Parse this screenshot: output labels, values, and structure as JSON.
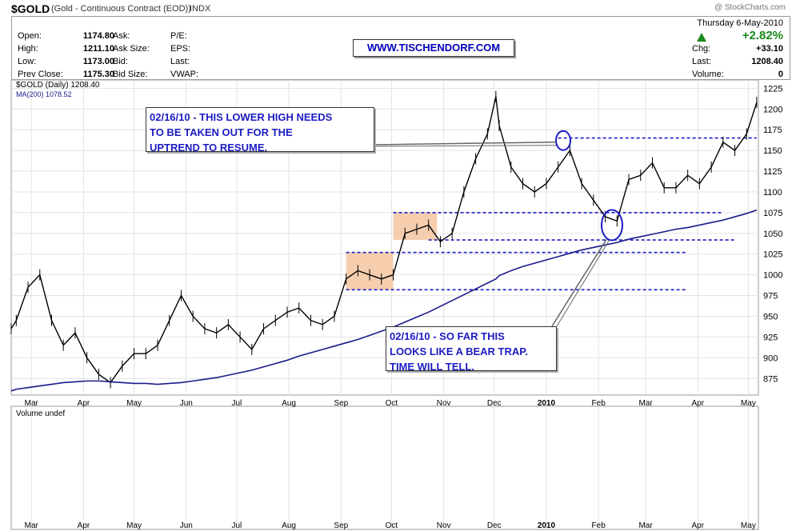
{
  "header": {
    "symbol": "$GOLD",
    "name": "(Gold - Continuous Contract (EOD))",
    "exchange": "INDX",
    "copyright": "@ StockCharts.com",
    "website": "WWW.TISCHENDORF.COM"
  },
  "quote": {
    "open_label": "Open:",
    "open": "1174.80",
    "high_label": "High:",
    "high": "1211.10",
    "low_label": "Low:",
    "low": "1173.00",
    "prev_label": "Prev Close:",
    "prev": "1175.30",
    "ask_label": "Ask:",
    "asksize_label": "Ask Size:",
    "bid_label": "Bid:",
    "bidsize_label": "Bid Size:",
    "pe_label": "P/E:",
    "eps_label": "EPS:",
    "last_label": "Last:",
    "vwap_label": "VWAP:"
  },
  "right_quote": {
    "date": "Thursday  6-May-2010",
    "pct": "+2.82%",
    "chg_label": "Chg:",
    "chg": "+33.10",
    "last_label": "Last:",
    "last": "1208.40",
    "volume_label": "Volume:",
    "volume": "0"
  },
  "legend": {
    "price": "$GOLD (Daily) 1208.40",
    "ma": "MA(200) 1078.52",
    "volume": "Volume undef"
  },
  "annotations": {
    "top": "02/16/10 - THIS LOWER HIGH NEEDS\nTO BE TAKEN OUT FOR THE\nUPTREND TO RESUME.",
    "bottom": "02/16/10 - SO FAR THIS\nLOOKS LIKE A BEAR TRAP.\nTIME WILL TELL."
  },
  "colors": {
    "price": "#000000",
    "ma": "#1a1a8c",
    "annotation": "#1c1cc4",
    "box": "#f5c6a0",
    "up": "#1a8a1a"
  },
  "chart_data": {
    "type": "line",
    "title": "$GOLD (Daily) 1208.40",
    "xlabel": "",
    "ylabel": "",
    "ylim": [
      855,
      1235
    ],
    "y_ticks": [
      875,
      900,
      925,
      950,
      975,
      1000,
      1025,
      1050,
      1075,
      1100,
      1125,
      1150,
      1175,
      1200,
      1225
    ],
    "x_ticks": [
      "Mar",
      "Apr",
      "May",
      "Jun",
      "Jul",
      "Aug",
      "Sep",
      "Oct",
      "Nov",
      "Dec",
      "2010",
      "Feb",
      "Mar",
      "Apr",
      "May"
    ],
    "x": [
      "2009-02-17",
      "2009-02-20",
      "2009-02-27",
      "2009-03-06",
      "2009-03-13",
      "2009-03-20",
      "2009-03-27",
      "2009-04-03",
      "2009-04-10",
      "2009-04-17",
      "2009-04-24",
      "2009-05-01",
      "2009-05-08",
      "2009-05-15",
      "2009-05-22",
      "2009-05-29",
      "2009-06-05",
      "2009-06-12",
      "2009-06-19",
      "2009-06-26",
      "2009-07-03",
      "2009-07-10",
      "2009-07-17",
      "2009-07-24",
      "2009-07-31",
      "2009-08-07",
      "2009-08-14",
      "2009-08-21",
      "2009-08-28",
      "2009-09-04",
      "2009-09-11",
      "2009-09-18",
      "2009-09-25",
      "2009-10-02",
      "2009-10-09",
      "2009-10-16",
      "2009-10-23",
      "2009-10-30",
      "2009-11-06",
      "2009-11-13",
      "2009-11-20",
      "2009-11-27",
      "2009-12-02",
      "2009-12-04",
      "2009-12-11",
      "2009-12-18",
      "2009-12-25",
      "2010-01-01",
      "2010-01-08",
      "2010-01-15",
      "2010-01-22",
      "2010-01-29",
      "2010-02-05",
      "2010-02-12",
      "2010-02-19",
      "2010-02-26",
      "2010-03-05",
      "2010-03-12",
      "2010-03-19",
      "2010-03-26",
      "2010-04-02",
      "2010-04-09",
      "2010-04-16",
      "2010-04-23",
      "2010-04-30",
      "2010-05-06"
    ],
    "series": [
      {
        "values": [
          935,
          945,
          985,
          1000,
          945,
          915,
          930,
          900,
          880,
          870,
          890,
          905,
          905,
          915,
          945,
          975,
          950,
          935,
          930,
          940,
          925,
          910,
          935,
          945,
          955,
          960,
          945,
          940,
          950,
          995,
          1005,
          1000,
          995,
          1000,
          1050,
          1055,
          1060,
          1040,
          1050,
          1100,
          1140,
          1170,
          1215,
          1180,
          1130,
          1110,
          1100,
          1110,
          1130,
          1150,
          1110,
          1090,
          1070,
          1065,
          1115,
          1120,
          1135,
          1105,
          1105,
          1120,
          1110,
          1130,
          1160,
          1150,
          1170,
          1208
        ]
      },
      {
        "name": "MA(200)",
        "values": [
          860,
          862,
          864,
          866,
          868,
          870,
          871,
          872,
          872,
          871,
          870,
          869,
          869,
          868,
          869,
          870,
          872,
          874,
          876,
          879,
          882,
          885,
          889,
          893,
          897,
          902,
          906,
          910,
          914,
          918,
          922,
          927,
          932,
          937,
          943,
          949,
          955,
          962,
          969,
          976,
          983,
          990,
          995,
          999,
          1005,
          1010,
          1014,
          1018,
          1022,
          1026,
          1030,
          1033,
          1036,
          1039,
          1043,
          1046,
          1049,
          1052,
          1055,
          1057,
          1060,
          1063,
          1066,
          1070,
          1074,
          1078
        ]
      }
    ],
    "levels": [
      {
        "y": 1165,
        "x0": "2010-01-08",
        "x1": "2010-05-06"
      },
      {
        "y": 1075,
        "x0": "2009-10-02",
        "x1": "2010-04-16"
      },
      {
        "y": 1042,
        "x0": "2009-10-23",
        "x1": "2010-04-23"
      },
      {
        "y": 1027,
        "x0": "2009-09-04",
        "x1": "2010-03-26"
      },
      {
        "y": 982,
        "x0": "2009-09-04",
        "x1": "2010-03-26"
      }
    ],
    "boxes": [
      {
        "x0": "2009-09-04",
        "x1": "2009-10-02",
        "y0": 982,
        "y1": 1027
      },
      {
        "x0": "2009-10-02",
        "x1": "2009-10-28",
        "y0": 1042,
        "y1": 1075
      }
    ],
    "ellipses": [
      {
        "x": "2010-01-11",
        "y": 1162
      },
      {
        "x": "2010-02-09",
        "y": 1060
      }
    ]
  }
}
